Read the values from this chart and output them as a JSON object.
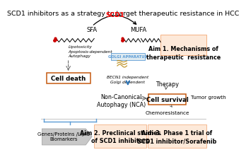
{
  "title": "SCD1 inhibitors as a strategy to target therapeutic resistance in HCC",
  "title_fontsize": 6.8,
  "bg_color": "#ffffff",
  "gray_bg": "#c8c8c8",
  "box_border": "#c55a11",
  "aim_box_color": "#fde9d9",
  "golgi_box_color": "#deeaf1",
  "golgi_border": "#5b9bd5",
  "cell_death_text": "Cell death",
  "cell_survival_text": "Cell survival",
  "sfa_label": "SFA",
  "mufa_label": "MUFA",
  "scd1_label": "SCD1",
  "lipotox_text": "Lipotoxicity\nApoptosis-dependent\nAutophagy",
  "golgi_text": "GOLGI APPARATUS",
  "becn1_text": "BECN1 independent\nGolgi dependent",
  "therapy_text": "Therapy",
  "nca_text": "Non-Canonical\nAutophagy (NCA)",
  "tumor_text": "Tumor growth",
  "chemo_text": "Chemoresistance",
  "aim1_text": "Aim 1. Mechanisms of\ntherapeutic  resistance",
  "aim2_text": "Aim 2. Preclinical studies\nof SCD1 inhibitors",
  "aim3_text": "Aim 3. Phase 1 trial of\nSCD1 inhibitor/Sorafenib",
  "biomarkers_text": "Genes/Proteins /Lipid\nBiomarkers",
  "arrow_blue": "#2e75b6",
  "arrow_gray": "#595959",
  "arrow_dark": "#404040"
}
